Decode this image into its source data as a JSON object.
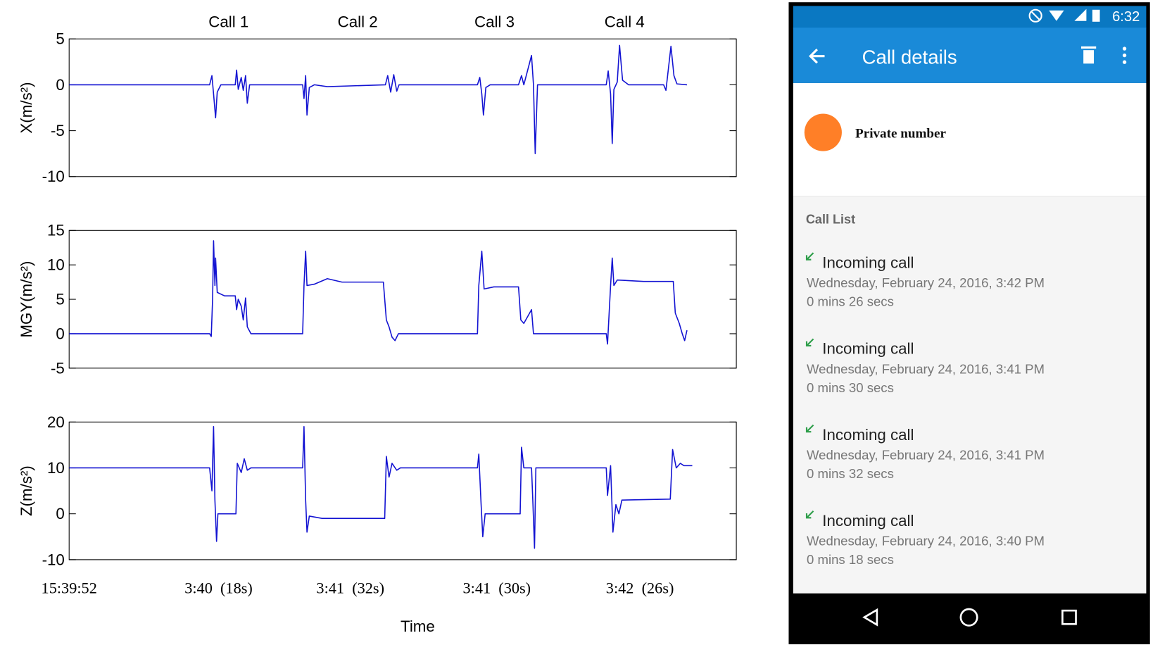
{
  "chart_data": [
    {
      "type": "line",
      "ylabel": "X(m/s²)",
      "color": "#1414d2",
      "xlim": [
        0,
        200
      ],
      "ylim": [
        -10,
        5
      ],
      "yticks": [
        -10,
        -5,
        0,
        5
      ],
      "annotations": [
        {
          "text": "Call 1",
          "x": 47.8
        },
        {
          "text": "Call 2",
          "x": 86.5
        },
        {
          "text": "Call 3",
          "x": 127.5
        },
        {
          "text": "Call 4",
          "x": 166.5
        }
      ],
      "x": [
        0,
        42.1,
        42.8,
        43.3,
        43.9,
        44.4,
        45.5,
        49.8,
        50.2,
        50.7,
        51.6,
        52.2,
        52.9,
        53.4,
        54.1,
        70.0,
        70.4,
        70.9,
        71.3,
        72.0,
        73.5,
        77.4,
        94.8,
        95.5,
        96.4,
        97.3,
        98.2,
        98.9,
        122.4,
        123.1,
        123.7,
        124.2,
        124.9,
        126.2,
        134.7,
        135.6,
        136.3,
        138.6,
        139.2,
        139.7,
        140.4,
        161.0,
        161.6,
        162.3,
        162.8,
        163.3,
        164.3,
        165.0,
        165.9,
        167.7,
        178.2,
        178.9,
        180.4,
        181.3,
        182.2,
        185.2
      ],
      "values": [
        0,
        0,
        1,
        -1,
        -3.6,
        -0.8,
        0,
        0,
        1.6,
        -0.5,
        0.8,
        -0.6,
        1,
        -2,
        0,
        0,
        -1.5,
        1,
        -3.3,
        -0.3,
        0,
        -0.2,
        0,
        1,
        -0.8,
        1.1,
        -0.7,
        0,
        0,
        0.8,
        -1,
        -3.3,
        -0.3,
        0,
        0,
        1,
        0,
        3.2,
        0,
        -7.5,
        0,
        0,
        1.5,
        -1,
        -6.4,
        -0.5,
        0.3,
        4.3,
        0.5,
        0,
        0,
        -0.6,
        4.2,
        1,
        0.1,
        0
      ]
    },
    {
      "type": "line",
      "ylabel": "MGY(m/s²)",
      "color": "#1414d2",
      "xlim": [
        0,
        200
      ],
      "ylim": [
        -5,
        15
      ],
      "yticks": [
        -5,
        0,
        5,
        10,
        15
      ],
      "x": [
        0,
        42.1,
        42.6,
        43.0,
        43.3,
        43.7,
        43.9,
        44.4,
        46.6,
        49.8,
        50.2,
        50.7,
        51.6,
        52.2,
        52.9,
        53.4,
        54.5,
        70.0,
        70.4,
        70.9,
        71.3,
        73.5,
        77.4,
        81.8,
        94.2,
        95.1,
        95.9,
        96.8,
        97.7,
        98.7,
        122.4,
        122.8,
        123.7,
        124.4,
        127.3,
        134.7,
        135.4,
        136.3,
        138.6,
        139.2,
        161.0,
        161.4,
        162.3,
        162.8,
        163.3,
        164.3,
        172.2,
        181.1,
        181.7,
        182.9,
        183.8,
        184.5,
        185.2
      ],
      "values": [
        0,
        0,
        -0.4,
        5,
        13.5,
        7,
        11,
        6,
        5.5,
        5.5,
        3.5,
        5,
        4,
        2,
        5.2,
        1,
        0,
        0,
        7,
        12,
        7,
        7.2,
        8,
        7.5,
        7.5,
        2,
        1,
        -0.5,
        -1,
        0,
        0,
        7,
        12,
        6.5,
        6.8,
        6.8,
        2,
        1.5,
        3.5,
        0,
        0,
        -1.5,
        7,
        11,
        7,
        7.8,
        7.6,
        7.6,
        3,
        1.5,
        0,
        -1,
        0.5
      ]
    },
    {
      "type": "line",
      "ylabel": "Z(m/s²)",
      "xlabel": "Time",
      "color": "#1414d2",
      "xlim": [
        0,
        200
      ],
      "ylim": [
        -10,
        20
      ],
      "yticks": [
        -10,
        0,
        10,
        20
      ],
      "xticks": [
        {
          "value": 0,
          "label": "15:39:52"
        },
        {
          "value": 44.8,
          "label": "3:40  (18s)"
        },
        {
          "value": 84.3,
          "label": "3:41  (32s)"
        },
        {
          "value": 128.2,
          "label": "3:41  (30s)"
        },
        {
          "value": 171.1,
          "label": "3:42  (26s)"
        }
      ],
      "x": [
        0,
        42.1,
        42.8,
        43.3,
        43.7,
        44.2,
        44.6,
        45.5,
        50.0,
        50.4,
        51.6,
        52.5,
        53.4,
        54.5,
        70.0,
        70.4,
        70.9,
        71.3,
        72.0,
        75.8,
        79.1,
        84.7,
        94.6,
        95.1,
        95.9,
        96.8,
        98.2,
        99.3,
        122.4,
        122.8,
        123.5,
        124.0,
        124.7,
        135.2,
        135.6,
        136.3,
        138.6,
        139.0,
        139.5,
        139.9,
        161.0,
        161.4,
        162.3,
        163.0,
        163.9,
        164.8,
        165.7,
        180.2,
        180.9,
        182.0,
        183.2,
        184.3,
        186.8
      ],
      "values": [
        10,
        10,
        5,
        19,
        3,
        -6,
        0,
        0,
        0,
        11,
        9,
        12,
        9.5,
        10,
        10,
        19,
        3,
        -4,
        -0.5,
        -1,
        -1,
        -1,
        -1,
        12.5,
        8,
        11,
        9.5,
        10,
        10,
        13,
        2,
        -5,
        0,
        0,
        14.5,
        10,
        10,
        3,
        -7.5,
        10,
        10,
        4,
        10.5,
        -4,
        2,
        0,
        3,
        3.2,
        14,
        10,
        11,
        10.5,
        10.5
      ]
    }
  ],
  "phone": {
    "status_time": "6:32",
    "title": "Call details",
    "contact": "Private number",
    "section": "Call List",
    "calls": [
      {
        "type": "Incoming call",
        "date": "Wednesday, February 24, 2016, 3:42 PM",
        "duration": "0 mins 26 secs"
      },
      {
        "type": "Incoming call",
        "date": "Wednesday, February 24, 2016, 3:41 PM",
        "duration": "0 mins 30 secs"
      },
      {
        "type": "Incoming call",
        "date": "Wednesday, February 24, 2016, 3:41 PM",
        "duration": "0 mins 32 secs"
      },
      {
        "type": "Incoming call",
        "date": "Wednesday, February 24, 2016, 3:40 PM",
        "duration": "0 mins 18 secs"
      }
    ]
  }
}
